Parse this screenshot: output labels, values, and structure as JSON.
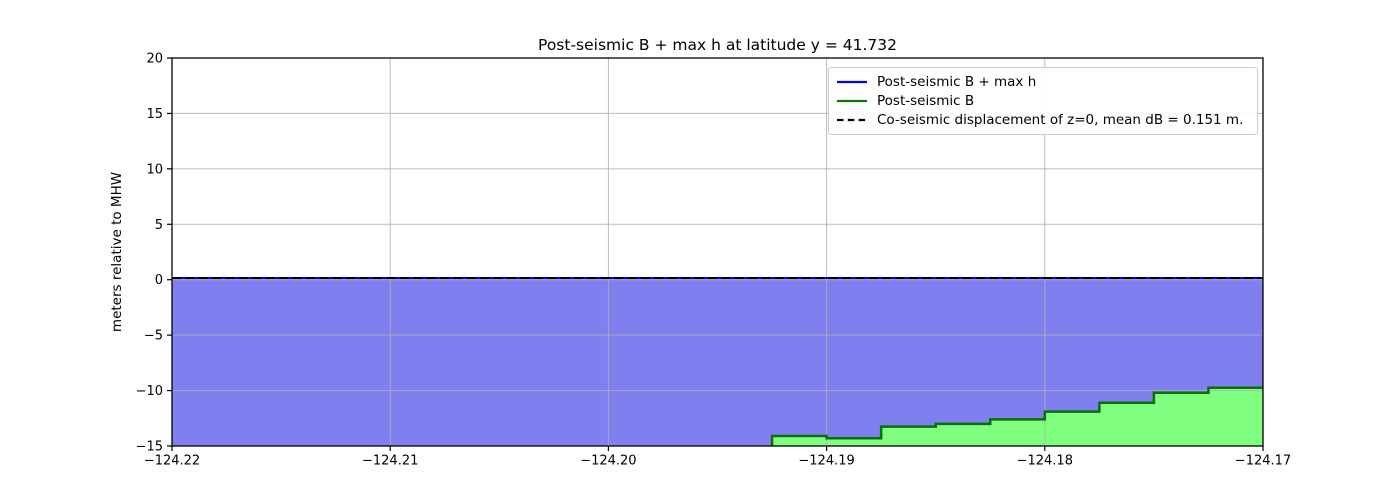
{
  "chart_data": {
    "type": "area",
    "title": "Post-seismic B + max h at latitude y = 41.732",
    "xlabel": "",
    "ylabel": "meters relative to MHW",
    "xlim": [
      -124.22,
      -124.17
    ],
    "ylim": [
      -15,
      20
    ],
    "grid": true,
    "grid_color": "#b0b0b0",
    "background_color": "#ffffff",
    "xticks": {
      "values": [
        -124.22,
        -124.21,
        -124.2,
        -124.19,
        -124.18,
        -124.17
      ],
      "labels": [
        "−124.22",
        "−124.21",
        "−124.20",
        "−124.19",
        "−124.18",
        "−124.17"
      ]
    },
    "yticks": {
      "values": [
        -15,
        -10,
        -5,
        0,
        5,
        10,
        15,
        20
      ],
      "labels": [
        "−15",
        "−10",
        "−5",
        "0",
        "5",
        "10",
        "15",
        "20"
      ]
    },
    "legend": {
      "position": "upper right",
      "entries": [
        {
          "label": "Post-seismic B + max h",
          "color": "#0000ff",
          "style": "solid"
        },
        {
          "label": "Post-seismic B",
          "color": "#067a06",
          "style": "solid"
        },
        {
          "label": "Co-seismic displacement of z=0, mean dB = 0.151 m.",
          "color": "#000000",
          "style": "dashed"
        }
      ]
    },
    "series": [
      {
        "name": "Post-seismic B + max h",
        "type": "line",
        "color": "#0000ff",
        "linestyle": "solid",
        "linewidth": 2,
        "fill": true,
        "fill_color": "#7f7ff0",
        "fill_baseline": -15,
        "x": [
          -124.22,
          -124.17
        ],
        "y": [
          0.15,
          0.15
        ]
      },
      {
        "name": "Post-seismic B",
        "type": "step",
        "color": "#0a6e0a",
        "linestyle": "solid",
        "linewidth": 2.5,
        "fill": true,
        "fill_color": "#80fe80",
        "fill_baseline": -15,
        "start_from_baseline": true,
        "step_edges_x": [
          -124.1925,
          -124.19,
          -124.1875,
          -124.185,
          -124.1825,
          -124.18,
          -124.1775,
          -124.175,
          -124.1725,
          -124.17
        ],
        "step_y": [
          -14.1,
          -14.3,
          -13.25,
          -13.0,
          -12.6,
          -11.9,
          -11.1,
          -10.2,
          -9.75
        ]
      },
      {
        "name": "Co-seismic displacement of z=0, mean dB = 0.151 m.",
        "type": "line",
        "color": "#000000",
        "linestyle": "dashed",
        "linewidth": 2,
        "fill": false,
        "x": [
          -124.22,
          -124.17
        ],
        "y": [
          0.151,
          0.151
        ]
      }
    ]
  }
}
